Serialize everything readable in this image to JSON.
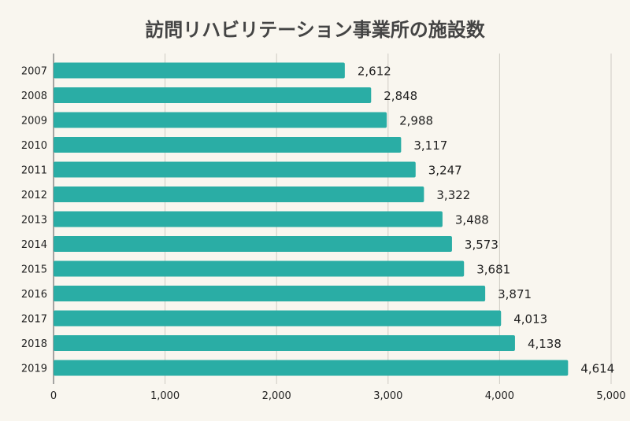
{
  "chart_data": {
    "type": "bar",
    "orientation": "horizontal",
    "title": "訪問リハビリテーション事業所の施設数",
    "categories": [
      "2007",
      "2008",
      "2009",
      "2010",
      "2011",
      "2012",
      "2013",
      "2014",
      "2015",
      "2016",
      "2017",
      "2018",
      "2019"
    ],
    "values": [
      2612,
      2848,
      2988,
      3117,
      3247,
      3322,
      3488,
      3573,
      3681,
      3871,
      4013,
      4138,
      4614
    ],
    "value_labels": [
      "2,612",
      "2,848",
      "2,988",
      "3,117",
      "3,247",
      "3,322",
      "3,488",
      "3,573",
      "3,681",
      "3,871",
      "4,013",
      "4,138",
      "4,614"
    ],
    "xlim": [
      0,
      5000
    ],
    "x_ticks": [
      "0",
      "1,000",
      "2,000",
      "3,000",
      "4,000",
      "5,000"
    ],
    "grid": "vertical",
    "xlabel": "",
    "ylabel": "",
    "colors": {
      "bar": "#2aada5",
      "background": "#f9f6ef",
      "grid": "#cfcbc4"
    }
  }
}
